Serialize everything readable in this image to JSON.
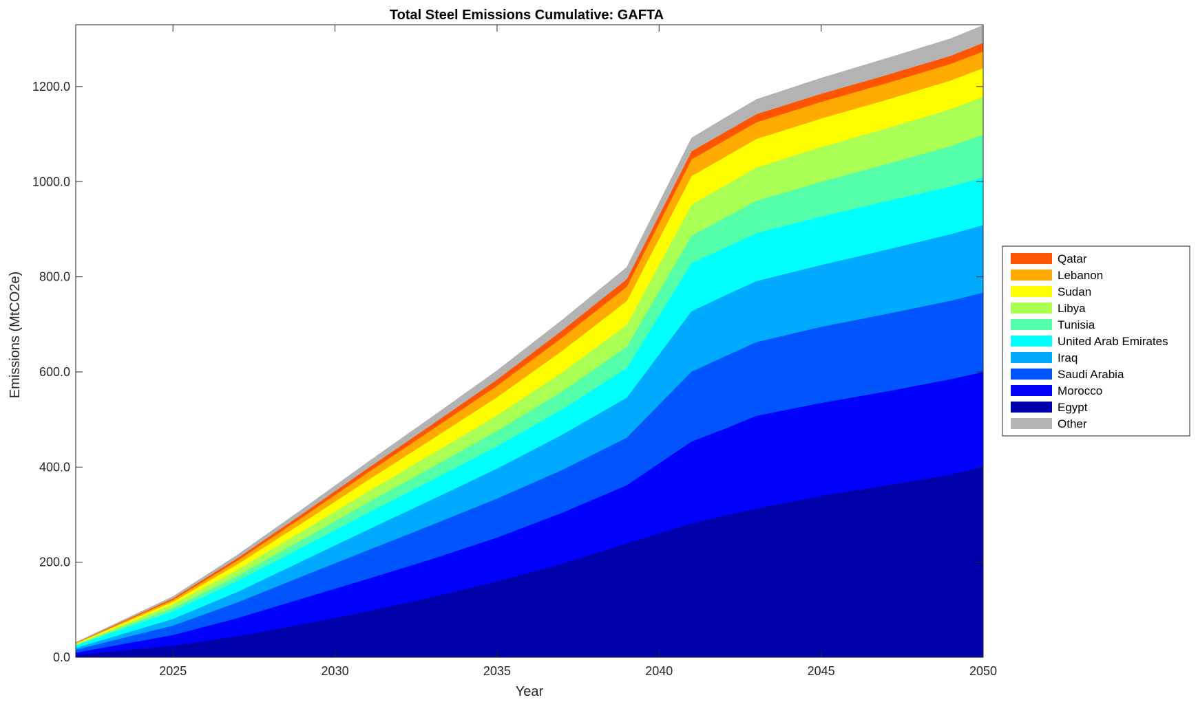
{
  "chart_data": {
    "type": "area",
    "stacked": true,
    "title": "Total Steel Emissions Cumulative: GAFTA",
    "xlabel": "Year",
    "ylabel": "Emissions (MtCO2e)",
    "xlim": [
      2022,
      2050
    ],
    "ylim": [
      0,
      1330
    ],
    "xticks": [
      "2025",
      "2030",
      "2035",
      "2040",
      "2045",
      "2050"
    ],
    "xtick_values": [
      2025,
      2030,
      2035,
      2040,
      2045,
      2050
    ],
    "yticks": [
      "0.0",
      "200.0",
      "400.0",
      "600.0",
      "800.0",
      "1000.0",
      "1200.0"
    ],
    "ytick_values": [
      0,
      200,
      400,
      600,
      800,
      1000,
      1200
    ],
    "grid": false,
    "legend_position": "right",
    "x": [
      2022,
      2025,
      2027,
      2029,
      2031,
      2033,
      2035,
      2037,
      2039,
      2041,
      2042,
      2043,
      2045,
      2047,
      2049,
      2050
    ],
    "series": [
      {
        "name": "Egypt",
        "color": "#0000AA",
        "values": [
          5,
          25,
          45,
          70,
          97,
          127,
          160,
          197,
          240,
          282,
          298,
          313,
          340,
          362,
          385,
          400
        ]
      },
      {
        "name": "Morocco",
        "color": "#0000FF",
        "values": [
          5,
          22,
          38,
          54,
          68,
          80,
          92,
          107,
          122,
          172,
          182,
          195,
          195,
          197,
          200,
          200
        ]
      },
      {
        "name": "Saudi Arabia",
        "color": "#0055FF",
        "values": [
          6,
          20,
          33,
          47,
          60,
          72,
          82,
          90,
          100,
          147,
          152,
          155,
          160,
          163,
          165,
          167
        ]
      },
      {
        "name": "Iraq",
        "color": "#00AAFF",
        "values": [
          4,
          14,
          22,
          32,
          43,
          53,
          63,
          74,
          84,
          127,
          128,
          128,
          130,
          135,
          140,
          142
        ]
      },
      {
        "name": "United Arab Emirates",
        "color": "#00FFFF",
        "values": [
          5,
          16,
          23,
          29,
          35,
          41,
          47,
          53,
          62,
          101,
          100,
          101,
          102,
          102,
          100,
          100
        ]
      },
      {
        "name": "Tunisia",
        "color": "#55FFAA",
        "values": [
          1,
          7,
          11,
          16,
          22,
          27,
          32,
          38,
          45,
          58,
          63,
          68,
          73,
          78,
          85,
          90
        ]
      },
      {
        "name": "Libya",
        "color": "#AAFF55",
        "values": [
          2,
          8,
          13,
          18,
          23,
          28,
          33,
          40,
          46,
          65,
          68,
          70,
          73,
          75,
          78,
          80
        ]
      },
      {
        "name": "Sudan",
        "color": "#FFFF00",
        "values": [
          1,
          5,
          11,
          17,
          24,
          31,
          38,
          45,
          50,
          60,
          60,
          60,
          60,
          60,
          60,
          60
        ]
      },
      {
        "name": "Lebanon",
        "color": "#FFAA00",
        "values": [
          1,
          4,
          8,
          12,
          16,
          20,
          24,
          28,
          30,
          35,
          35,
          35,
          35,
          35,
          35,
          35
        ]
      },
      {
        "name": "Qatar",
        "color": "#FF5500",
        "values": [
          0.5,
          3,
          5,
          7,
          9,
          11,
          13,
          15,
          16,
          17,
          17,
          17,
          17,
          17,
          17,
          18
        ]
      },
      {
        "name": "Other",
        "color": "#B3B3B3",
        "values": [
          1,
          4,
          7,
          10,
          13,
          16,
          19,
          22,
          25,
          28,
          30,
          31,
          33,
          35,
          36,
          37
        ]
      }
    ],
    "legend_order": [
      "Qatar",
      "Lebanon",
      "Sudan",
      "Libya",
      "Tunisia",
      "United Arab Emirates",
      "Iraq",
      "Saudi Arabia",
      "Morocco",
      "Egypt",
      "Other"
    ]
  }
}
